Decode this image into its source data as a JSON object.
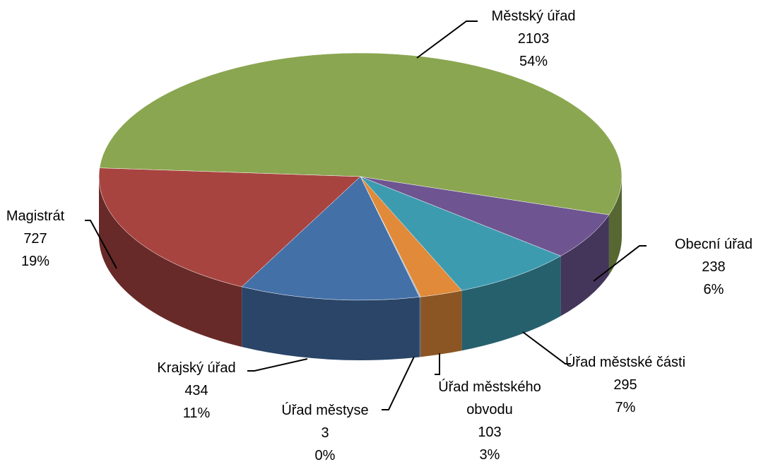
{
  "chart_data": {
    "type": "pie3d",
    "categories": [
      "Městský úřad",
      "Obecní úřad",
      "Úřad městské části",
      "Úřad městského obvodu",
      "Úřad městyse",
      "Krajský úřad",
      "Magistrát"
    ],
    "values": [
      2103,
      238,
      295,
      103,
      3,
      434,
      727
    ],
    "percent_labels": [
      "54%",
      "6%",
      "7%",
      "3%",
      "0%",
      "11%",
      "19%"
    ],
    "colors": [
      "#8aa650",
      "#6e5591",
      "#3d9bb0",
      "#e08a3a",
      "#8fa9c8",
      "#4470a8",
      "#a84440"
    ]
  }
}
